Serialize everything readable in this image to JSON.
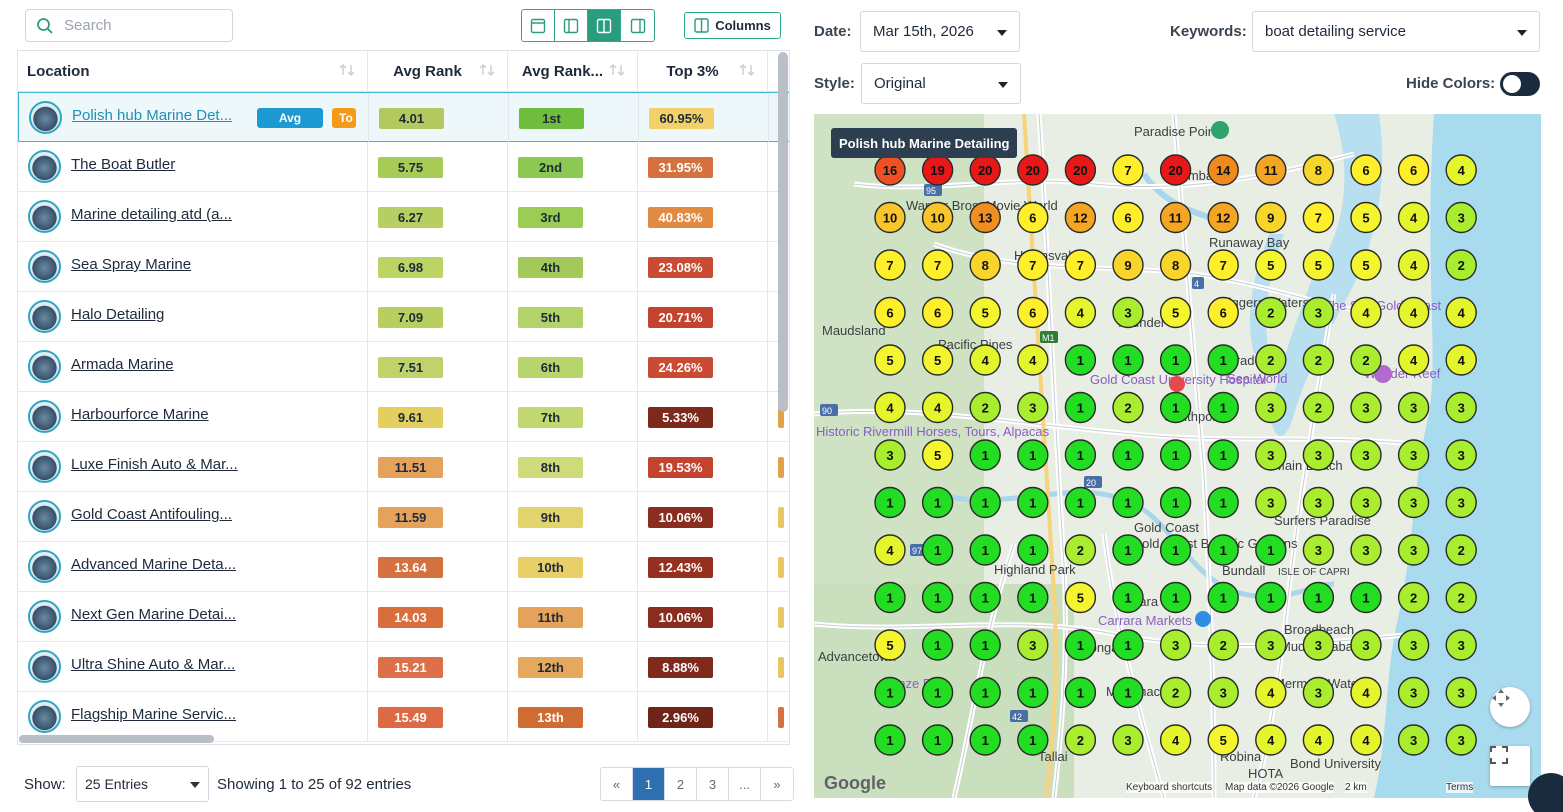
{
  "toolbar": {
    "search_placeholder": "Search",
    "columns_label": "Columns",
    "view_icons": [
      "layout-full-icon",
      "layout-left-icon",
      "layout-split-icon",
      "layout-right-icon"
    ],
    "active_view": 2
  },
  "table": {
    "headers": [
      "Location",
      "Avg Rank",
      "Avg Rank...",
      "Top 3%"
    ],
    "badges": {
      "avg": "Avg",
      "next": "To"
    },
    "rows": [
      {
        "name": "Polish hub Marine Det...",
        "avg_rank": "4.01",
        "rank_pos": "1st",
        "top3": "60.95%",
        "c1": "#b3c95f",
        "c2": "#6fbd3c",
        "c3": "#f2d06a",
        "c4": "#9fc04a",
        "highlight": true
      },
      {
        "name": "The Boat Butler",
        "avg_rank": "5.75",
        "rank_pos": "2nd",
        "top3": "31.95%",
        "c1": "#a6cc55",
        "c2": "#8dc952",
        "c3": "#d4713e",
        "c4": "#9fc04a"
      },
      {
        "name": "Marine detailing atd (a...",
        "avg_rank": "6.27",
        "rank_pos": "3rd",
        "top3": "40.83%",
        "c1": "#b7cf62",
        "c2": "#9acc56",
        "c3": "#e08a44",
        "c4": "#9fc04a"
      },
      {
        "name": "Sea Spray Marine",
        "avg_rank": "6.98",
        "rank_pos": "4th",
        "top3": "23.08%",
        "c1": "#bcd466",
        "c2": "#a3c95b",
        "c3": "#c94b33",
        "c4": "#9fc04a"
      },
      {
        "name": "Halo Detailing",
        "avg_rank": "7.09",
        "rank_pos": "5th",
        "top3": "20.71%",
        "c1": "#b8cf5f",
        "c2": "#b3d36a",
        "c3": "#c4432f",
        "c4": "#9fc04a"
      },
      {
        "name": "Armada Marine",
        "avg_rank": "7.51",
        "rank_pos": "6th",
        "top3": "24.26%",
        "c1": "#bfd36a",
        "c2": "#b6d56d",
        "c3": "#c94b33",
        "c4": "#9fc04a"
      },
      {
        "name": "Harbourforce Marine",
        "avg_rank": "9.61",
        "rank_pos": "7th",
        "top3": "5.33%",
        "c1": "#e2cf60",
        "c2": "#c1d872",
        "c3": "#7d2a1c",
        "c4": "#e0a24a"
      },
      {
        "name": "Luxe Finish Auto & Mar...",
        "avg_rank": "11.51",
        "rank_pos": "8th",
        "top3": "19.53%",
        "c1": "#e4a25a",
        "c2": "#cfdb7b",
        "c3": "#c4432f",
        "c4": "#e0a24a"
      },
      {
        "name": "Gold Coast Antifouling...",
        "avg_rank": "11.59",
        "rank_pos": "9th",
        "top3": "10.06%",
        "c1": "#e4a25a",
        "c2": "#e1d46c",
        "c3": "#8a2d1f",
        "c4": "#e8c763"
      },
      {
        "name": "Advanced Marine Deta...",
        "avg_rank": "13.64",
        "rank_pos": "10th",
        "top3": "12.43%",
        "c1": "#d4713e",
        "c2": "#e8cf68",
        "c3": "#972f20",
        "c4": "#e8c763"
      },
      {
        "name": "Next Gen Marine Detai...",
        "avg_rank": "14.03",
        "rank_pos": "11th",
        "top3": "10.06%",
        "c1": "#d86e3b",
        "c2": "#e4a25a",
        "c3": "#8a2d1f",
        "c4": "#e8c763"
      },
      {
        "name": "Ultra Shine Auto & Mar...",
        "avg_rank": "15.21",
        "rank_pos": "12th",
        "top3": "8.88%",
        "c1": "#de7049",
        "c2": "#e6a85c",
        "c3": "#7f2a1c",
        "c4": "#e8c763"
      },
      {
        "name": "Flagship Marine Servic...",
        "avg_rank": "15.49",
        "rank_pos": "13th",
        "top3": "2.96%",
        "c1": "#dc6a45",
        "c2": "#cf6c33",
        "c3": "#6f2417",
        "c4": "#d4713e"
      }
    ]
  },
  "footer": {
    "show_label": "Show:",
    "entries_value": "25 Entries",
    "showing_text": "Showing 1 to 25 of 92 entries",
    "pages": [
      "«",
      "1",
      "2",
      "3",
      "...",
      "»"
    ],
    "active_page": 1
  },
  "controls": {
    "date_label": "Date:",
    "date_value": "Mar 15th, 2026",
    "keywords_label": "Keywords:",
    "keywords_value": "boat detailing service",
    "style_label": "Style:",
    "style_value": "Original",
    "hide_colors_label": "Hide Colors:"
  },
  "map": {
    "tooltip": "Polish hub Marine Detailing",
    "grid": [
      [
        16,
        19,
        20,
        20,
        20,
        7,
        20,
        14,
        11,
        8,
        6,
        6,
        4
      ],
      [
        10,
        10,
        13,
        6,
        12,
        6,
        11,
        12,
        9,
        7,
        5,
        4,
        3
      ],
      [
        7,
        7,
        8,
        7,
        7,
        9,
        8,
        7,
        5,
        5,
        5,
        4,
        2
      ],
      [
        6,
        6,
        5,
        6,
        4,
        3,
        5,
        6,
        2,
        3,
        4,
        4,
        4
      ],
      [
        5,
        5,
        4,
        4,
        1,
        1,
        1,
        1,
        2,
        2,
        2,
        4,
        4
      ],
      [
        4,
        4,
        2,
        3,
        1,
        2,
        1,
        1,
        3,
        2,
        3,
        3,
        3
      ],
      [
        3,
        5,
        1,
        1,
        1,
        1,
        1,
        1,
        3,
        3,
        3,
        3,
        3
      ],
      [
        1,
        1,
        1,
        1,
        1,
        1,
        1,
        1,
        3,
        3,
        3,
        3,
        3
      ],
      [
        4,
        1,
        1,
        1,
        2,
        1,
        1,
        1,
        1,
        3,
        3,
        3,
        2
      ],
      [
        1,
        1,
        1,
        1,
        5,
        1,
        1,
        1,
        1,
        1,
        1,
        2,
        2
      ],
      [
        5,
        1,
        1,
        3,
        1,
        1,
        3,
        2,
        3,
        3,
        3,
        3,
        3
      ],
      [
        1,
        1,
        1,
        1,
        1,
        1,
        2,
        3,
        4,
        3,
        4,
        3,
        3
      ],
      [
        1,
        1,
        1,
        1,
        2,
        3,
        4,
        5,
        4,
        4,
        4,
        3,
        3
      ]
    ],
    "labels": [
      "Paradise Point",
      "Coombabah",
      "Runaway Bay",
      "Helensvale",
      "Warner Bros. Movie World",
      "Maudsland",
      "Pacific Pines",
      "Biggera Waters",
      "Labrador",
      "Sea World",
      "Wonder Reef",
      "Gold Coast University Hospital",
      "Arundel",
      "The Spit Gold Coast",
      "Southport",
      "Historic Rivermill Horses, Tours, Alpacas",
      "Main Beach",
      "Gold Coast",
      "Surfers Paradise",
      "Highland Park",
      "Gold Coast Botanic Gardens",
      "Bundall",
      "ISLE OF CAPRI",
      "Carrara",
      "Carrara Markets",
      "Broadbeach",
      "Advancetown",
      "Mudgeeraba",
      "Worongary",
      "Hinze Dam",
      "Merrimac",
      "Mermaid Waters",
      "Tallai",
      "Robina",
      "Bond University",
      "HOTA"
    ],
    "roads": [
      "95",
      "4",
      "M1",
      "90",
      "20",
      "97",
      "42"
    ],
    "google": "Google",
    "attrib_keyboard": "Keyboard shortcuts",
    "attrib_data": "Map data ©2026 Google",
    "attrib_scale": "2 km",
    "attrib_terms": "Terms"
  }
}
